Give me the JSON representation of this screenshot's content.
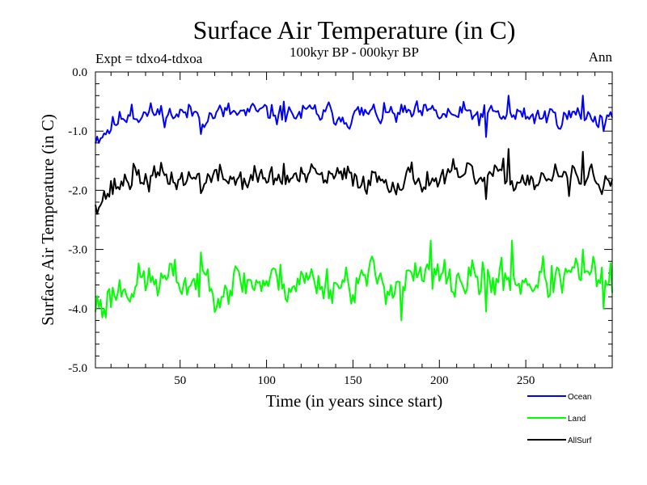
{
  "chart_data": {
    "type": "line",
    "title": "Surface Air Temperature (in C)",
    "subtitle": "100kyr BP - 000kyr BP",
    "experiment_label": "Expt = tdxo4-tdxoa",
    "season_label": "Ann",
    "xlabel": "Time (in years since start)",
    "ylabel": "Surface Air Temperature (in C)",
    "xlim": [
      1,
      300
    ],
    "ylim": [
      -5.0,
      0.0
    ],
    "xticks": [
      50,
      100,
      150,
      200,
      250
    ],
    "xtick_labels": [
      "50",
      "100",
      "150",
      "200",
      "250"
    ],
    "yticks": [
      0.0,
      -1.0,
      -2.0,
      -3.0,
      -4.0,
      -5.0
    ],
    "ytick_labels": [
      "0.0",
      "-1.0",
      "-2.0",
      "-3.0",
      "-4.0",
      "-5.0"
    ],
    "grid": false,
    "legend_position": "bottom-right",
    "series": [
      {
        "name": "Ocean",
        "color": "#0000ff",
        "mean": -0.82,
        "amplitude": 0.15,
        "trend": [
          [
            1,
            -1.1
          ],
          [
            20,
            -0.7
          ],
          [
            300,
            -0.75
          ]
        ],
        "peaks": [
          [
            22,
            -0.55
          ],
          [
            110,
            -0.5
          ],
          [
            240,
            -0.4
          ],
          [
            283,
            -0.4
          ]
        ],
        "troughs": [
          [
            3,
            -1.2
          ],
          [
            62,
            -1.05
          ],
          [
            227,
            -1.1
          ],
          [
            295,
            -1.0
          ]
        ],
        "seed": 11
      },
      {
        "name": "Land",
        "color": "#00ff00",
        "mean": -3.55,
        "amplitude": 0.28,
        "trend": [
          [
            1,
            -3.95
          ],
          [
            20,
            -3.55
          ],
          [
            300,
            -3.5
          ]
        ],
        "peaks": [
          [
            62,
            -3.05
          ],
          [
            195,
            -2.85
          ],
          [
            242,
            -2.85
          ],
          [
            283,
            -3.0
          ]
        ],
        "troughs": [
          [
            5,
            -4.15
          ],
          [
            178,
            -4.2
          ],
          [
            227,
            -4.05
          ],
          [
            295,
            -4.0
          ]
        ],
        "seed": 23
      },
      {
        "name": "AllSurf",
        "color": "#000000",
        "mean": -1.85,
        "amplitude": 0.18,
        "trend": [
          [
            1,
            -2.15
          ],
          [
            20,
            -1.8
          ],
          [
            300,
            -1.8
          ]
        ],
        "peaks": [
          [
            23,
            -1.55
          ],
          [
            110,
            -1.55
          ],
          [
            240,
            -1.3
          ],
          [
            283,
            -1.35
          ]
        ],
        "troughs": [
          [
            4,
            -2.25
          ],
          [
            62,
            -2.05
          ],
          [
            227,
            -2.15
          ],
          [
            275,
            -2.1
          ]
        ],
        "seed": 37
      }
    ]
  }
}
